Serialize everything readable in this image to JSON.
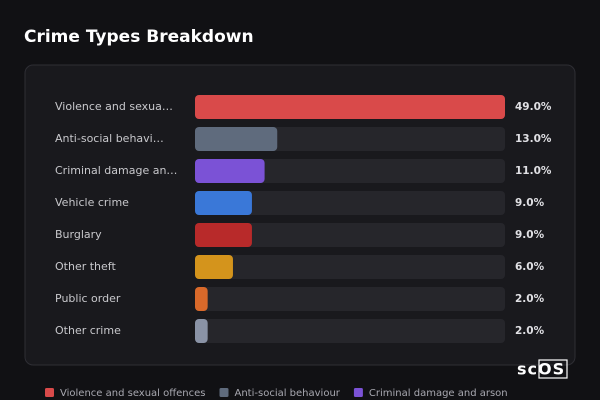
{
  "title": "Crime Types Breakdown",
  "chart_data": {
    "type": "bar",
    "orientation": "horizontal",
    "categories": [
      "Violence and sexua…",
      "Anti-social behavi…",
      "Criminal damage an…",
      "Vehicle crime",
      "Burglary",
      "Other theft",
      "Public order",
      "Other crime"
    ],
    "values": [
      49,
      13,
      11,
      9,
      9,
      6,
      2,
      2
    ],
    "value_labels": [
      "49.0%",
      "13.0%",
      "11.0%",
      "9.0%",
      "9.0%",
      "6.0%",
      "2.0%",
      "2.0%"
    ],
    "colors": [
      "#d94a4a",
      "#5f6b7d",
      "#7b52d6",
      "#3a78d8",
      "#b82a2a",
      "#d4941c",
      "#d9692a",
      "#8a93a6"
    ]
  },
  "legend": [
    {
      "name": "Violence and sexual offences",
      "color": "#d94a4a"
    },
    {
      "name": "Anti-social behaviour",
      "color": "#5f6b7d"
    },
    {
      "name": "Criminal damage and arson",
      "color": "#7b52d6"
    }
  ],
  "logo": "scOS"
}
